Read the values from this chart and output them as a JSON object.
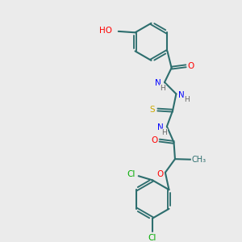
{
  "background_color": "#ebebeb",
  "bond_color": "#2d6e6e",
  "atom_colors": {
    "O": "#ff0000",
    "N": "#0000ff",
    "S": "#ccaa00",
    "Cl": "#00aa00",
    "C": "#2d6e6e",
    "H": "#666666"
  },
  "figsize": [
    3.0,
    3.0
  ],
  "dpi": 100
}
